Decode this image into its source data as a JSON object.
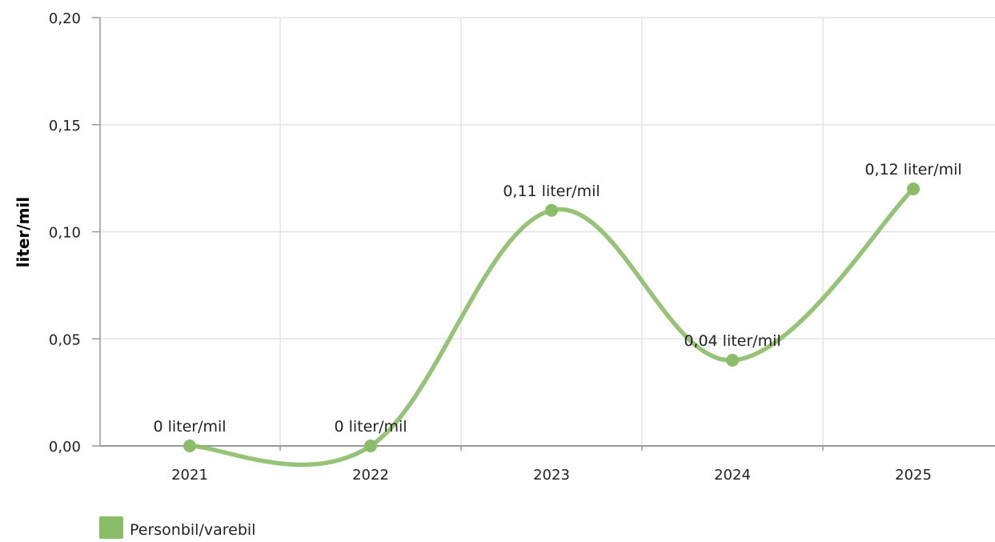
{
  "chart_data": {
    "type": "line",
    "title": "",
    "xlabel": "",
    "ylabel": "liter/mil",
    "categories": [
      "2021",
      "2022",
      "2023",
      "2024",
      "2025"
    ],
    "series": [
      {
        "name": "Personbil/varebil",
        "values": [
          0,
          0,
          0.11,
          0.04,
          0.12
        ],
        "labels": [
          "0 liter/mil",
          "0 liter/mil",
          "0,11 liter/mil",
          "0,04 liter/mil",
          "0,12 liter/mil"
        ],
        "color": "#8bbd68"
      }
    ],
    "ylim": [
      0,
      0.2
    ],
    "yticks": [
      0,
      0.05,
      0.1,
      0.15,
      0.2
    ],
    "ytick_labels": [
      "0,00",
      "0,05",
      "0,10",
      "0,15",
      "0,20"
    ],
    "grid": true,
    "smooth": true,
    "legend_position": "bottom-left"
  }
}
